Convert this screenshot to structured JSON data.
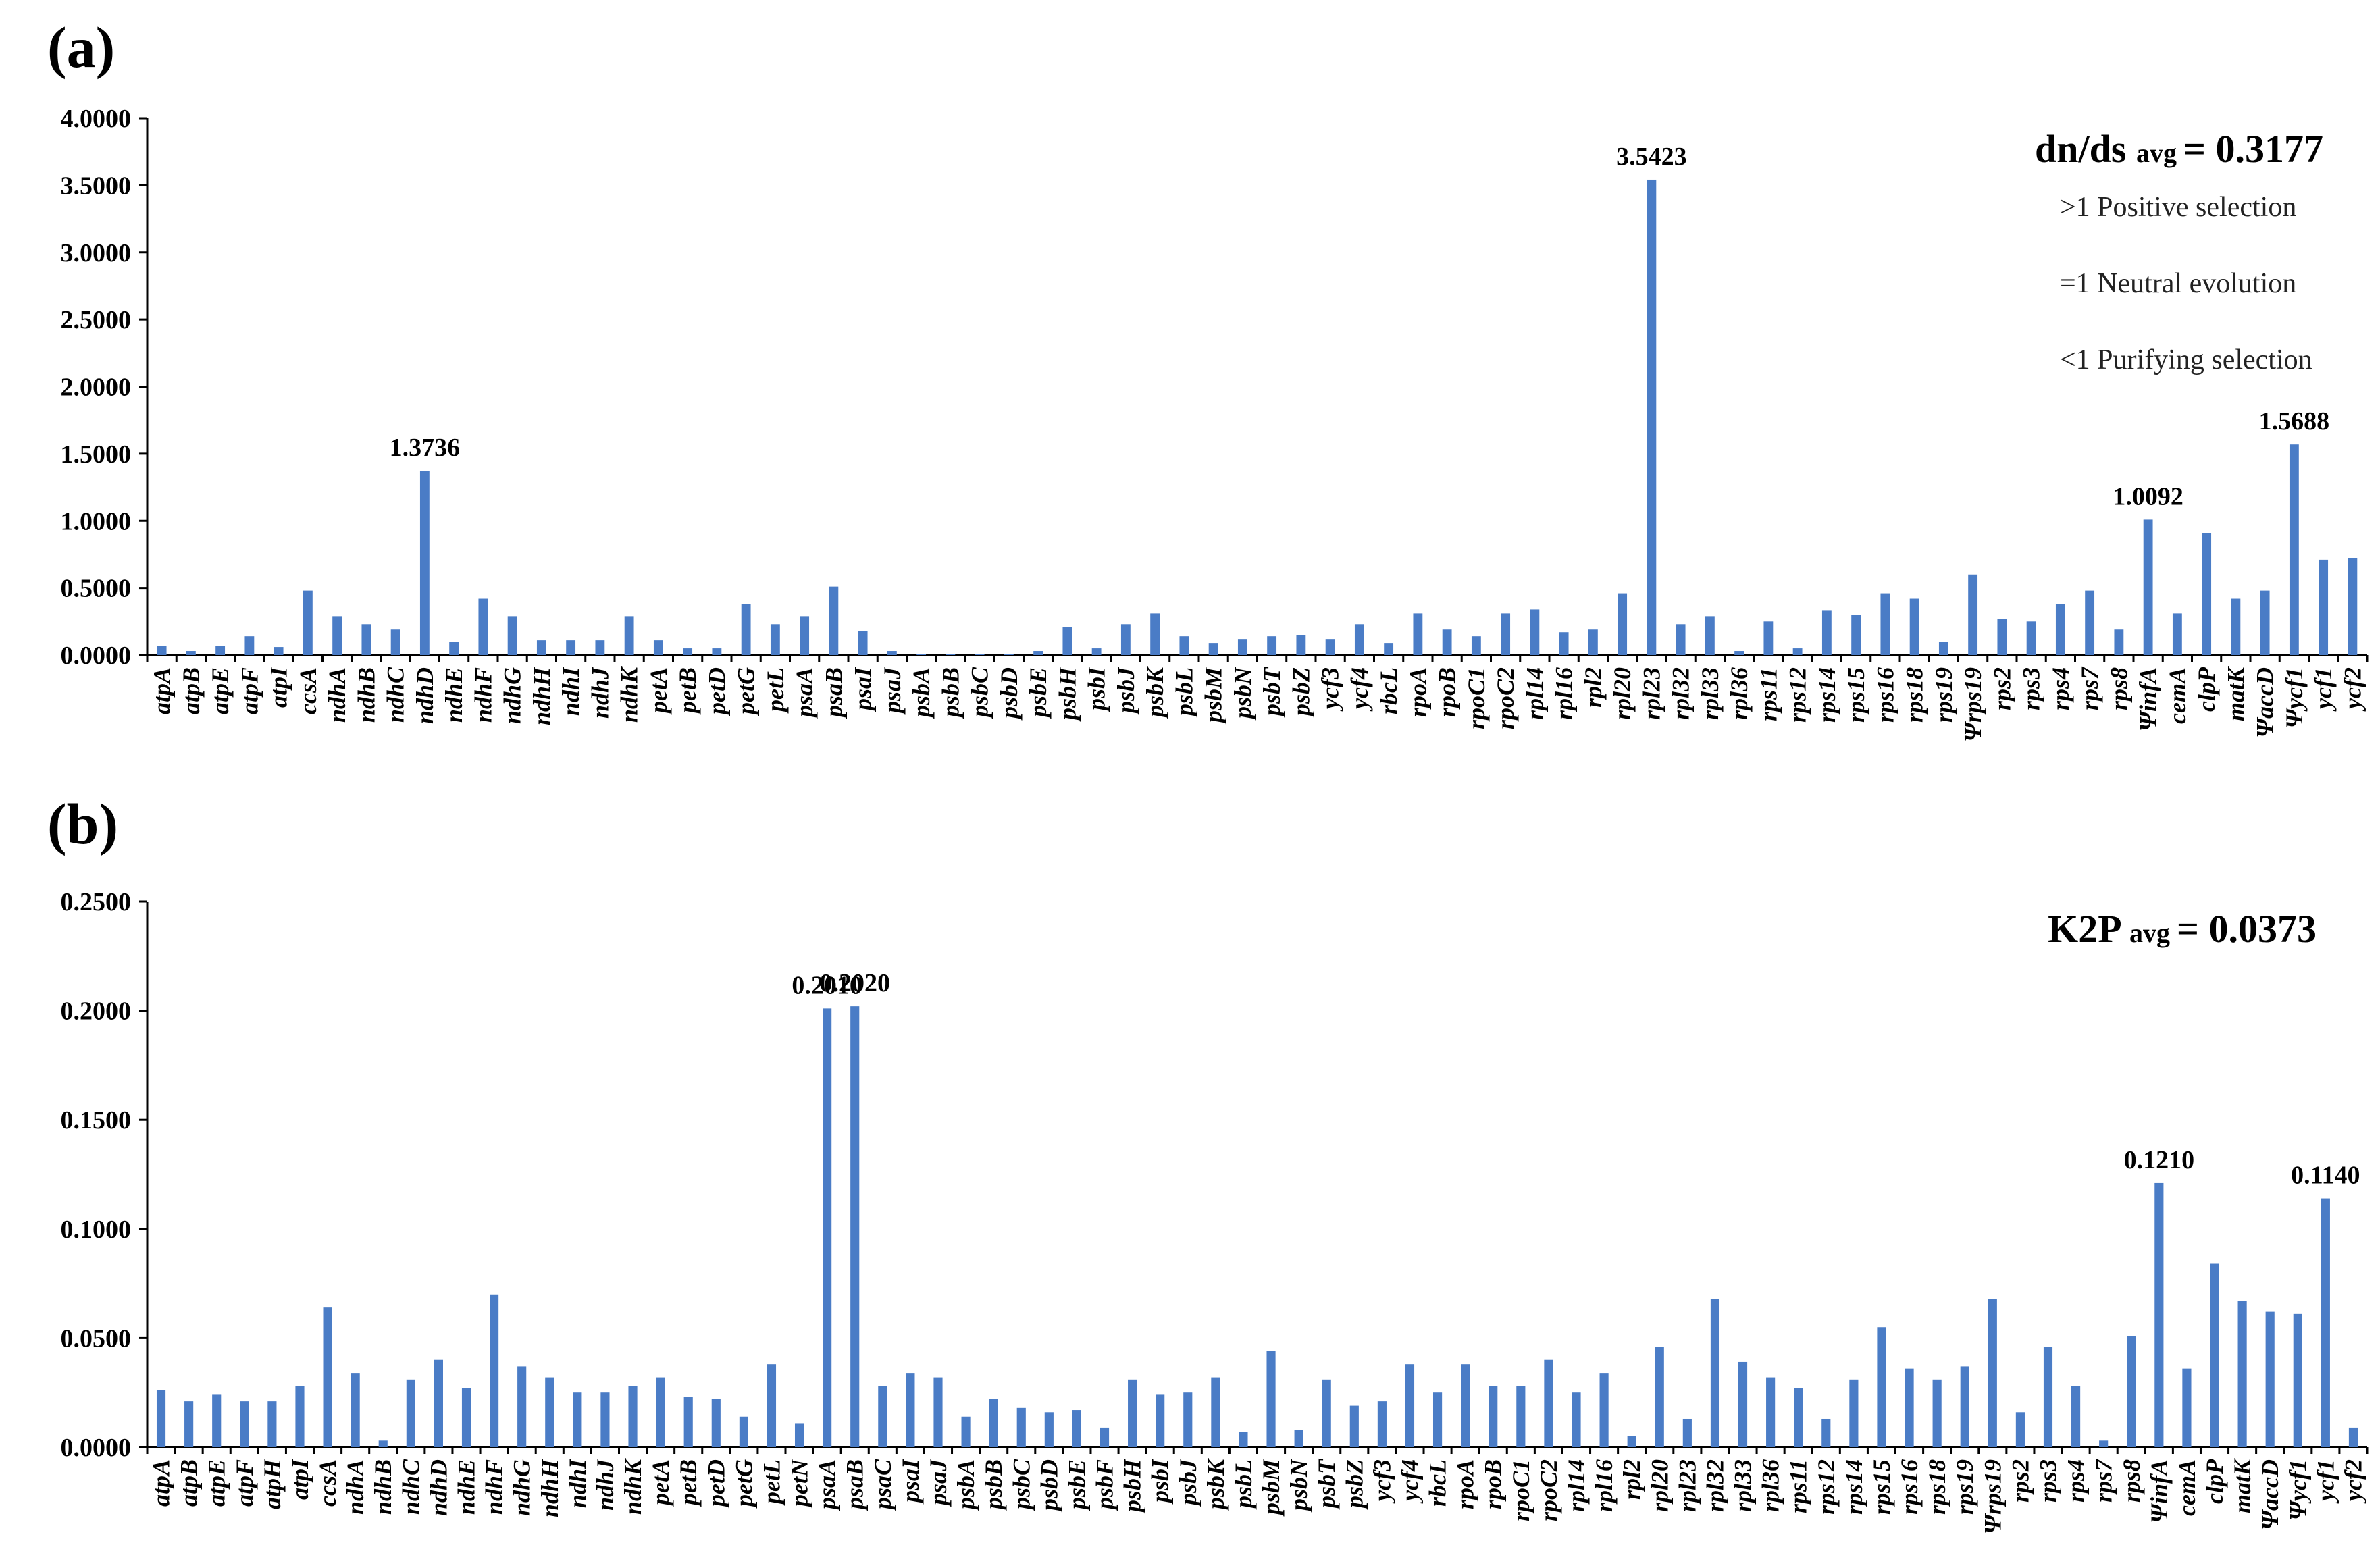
{
  "panels": [
    {
      "label": "(a)",
      "stat": {
        "main": "dn/ds",
        "sub": "avg",
        "value": "= 0.3177"
      },
      "legend": [
        ">1 Positive selection",
        "=1 Neutral evolution",
        "<1 Purifying selection"
      ],
      "chart_data": {
        "type": "bar",
        "ylim": [
          0,
          4
        ],
        "yticks": [
          0,
          0.5,
          1,
          1.5,
          2,
          2.5,
          3,
          3.5,
          4
        ],
        "ytick_labels": [
          "0.0000",
          "0.5000",
          "1.0000",
          "1.5000",
          "2.0000",
          "2.5000",
          "3.0000",
          "3.5000",
          "4.0000"
        ],
        "categories": [
          "atpA",
          "atpB",
          "atpE",
          "atpF",
          "atpI",
          "ccsA",
          "ndhA",
          "ndhB",
          "ndhC",
          "ndhD",
          "ndhE",
          "ndhF",
          "ndhG",
          "ndhH",
          "ndhI",
          "ndhJ",
          "ndhK",
          "petA",
          "petB",
          "petD",
          "petG",
          "petL",
          "psaA",
          "psaB",
          "psaI",
          "psaJ",
          "psbA",
          "psbB",
          "psbC",
          "psbD",
          "psbE",
          "psbH",
          "psbI",
          "psbJ",
          "psbK",
          "psbL",
          "psbM",
          "psbN",
          "psbT",
          "psbZ",
          "ycf3",
          "ycf4",
          "rbcL",
          "rpoA",
          "rpoB",
          "rpoC1",
          "rpoC2",
          "rpl14",
          "rpl16",
          "rpl2",
          "rpl20",
          "rpl23",
          "rpl32",
          "rpl33",
          "rpl36",
          "rps11",
          "rps12",
          "rps14",
          "rps15",
          "rps16",
          "rps18",
          "rps19",
          "Ψrps19",
          "rps2",
          "rps3",
          "rps4",
          "rps7",
          "rps8",
          "ΨinfA",
          "cemA",
          "clpP",
          "matK",
          "ΨaccD",
          "Ψycf1",
          "ycf1",
          "ycf2"
        ],
        "values": [
          0.07,
          0.03,
          0.07,
          0.14,
          0.06,
          0.48,
          0.29,
          0.23,
          0.19,
          1.3736,
          0.1,
          0.42,
          0.29,
          0.11,
          0.11,
          0.11,
          0.29,
          0.11,
          0.05,
          0.05,
          0.38,
          0.23,
          0.29,
          0.51,
          0.18,
          0.03,
          0.01,
          0.01,
          0.01,
          0.01,
          0.03,
          0.21,
          0.05,
          0.23,
          0.31,
          0.14,
          0.09,
          0.12,
          0.14,
          0.15,
          0.12,
          0.23,
          0.09,
          0.31,
          0.19,
          0.14,
          0.31,
          0.34,
          0.17,
          0.19,
          0.46,
          3.5423,
          0.23,
          0.29,
          0.03,
          0.25,
          0.05,
          0.33,
          0.3,
          0.46,
          0.42,
          0.1,
          0.6,
          0.27,
          0.25,
          0.38,
          0.48,
          0.19,
          1.0092,
          0.31,
          0.91,
          0.42,
          0.48,
          1.5688,
          0.71,
          0.72
        ],
        "callouts": [
          {
            "category": "ndhD",
            "label": "1.3736"
          },
          {
            "category": "rpl23",
            "label": "3.5423"
          },
          {
            "category": "ΨinfA",
            "label": "1.0092"
          },
          {
            "category": "Ψycf1",
            "label": "1.5688"
          }
        ]
      }
    },
    {
      "label": "(b)",
      "stat": {
        "main": "K2P",
        "sub": "avg",
        "value": "= 0.0373"
      },
      "legend": [],
      "chart_data": {
        "type": "bar",
        "ylim": [
          0,
          0.25
        ],
        "yticks": [
          0,
          0.05,
          0.1,
          0.15,
          0.2,
          0.25
        ],
        "ytick_labels": [
          "0.0000",
          "0.0500",
          "0.1000",
          "0.1500",
          "0.2000",
          "0.2500"
        ],
        "categories": [
          "atpA",
          "atpB",
          "atpE",
          "atpF",
          "atpH",
          "atpI",
          "ccsA",
          "ndhA",
          "ndhB",
          "ndhC",
          "ndhD",
          "ndhE",
          "ndhF",
          "ndhG",
          "ndhH",
          "ndhI",
          "ndhJ",
          "ndhK",
          "petA",
          "petB",
          "petD",
          "petG",
          "petL",
          "petN",
          "psaA",
          "psaB",
          "psaC",
          "psaI",
          "psaJ",
          "psbA",
          "psbB",
          "psbC",
          "psbD",
          "psbE",
          "psbF",
          "psbH",
          "psbI",
          "psbJ",
          "psbK",
          "psbL",
          "psbM",
          "psbN",
          "psbT",
          "psbZ",
          "ycf3",
          "ycf4",
          "rbcL",
          "rpoA",
          "rpoB",
          "rpoC1",
          "rpoC2",
          "rpl14",
          "rpl16",
          "rpl2",
          "rpl20",
          "rpl23",
          "rpl32",
          "rpl33",
          "rpl36",
          "rps11",
          "rps12",
          "rps14",
          "rps15",
          "rps16",
          "rps18",
          "rps19",
          "Ψrps19",
          "rps2",
          "rps3",
          "rps4",
          "rps7",
          "rps8",
          "ΨinfA",
          "cemA",
          "clpP",
          "matK",
          "ΨaccD",
          "Ψycf1",
          "ycf1",
          "ycf2"
        ],
        "values": [
          0.026,
          0.021,
          0.024,
          0.021,
          0.021,
          0.028,
          0.064,
          0.034,
          0.003,
          0.031,
          0.04,
          0.027,
          0.07,
          0.037,
          0.032,
          0.025,
          0.025,
          0.028,
          0.032,
          0.023,
          0.022,
          0.014,
          0.038,
          0.011,
          0.201,
          0.202,
          0.028,
          0.034,
          0.032,
          0.014,
          0.022,
          0.018,
          0.016,
          0.017,
          0.009,
          0.031,
          0.024,
          0.025,
          0.032,
          0.007,
          0.044,
          0.008,
          0.031,
          0.019,
          0.021,
          0.038,
          0.025,
          0.038,
          0.028,
          0.028,
          0.04,
          0.025,
          0.034,
          0.005,
          0.046,
          0.013,
          0.068,
          0.039,
          0.032,
          0.027,
          0.013,
          0.031,
          0.055,
          0.036,
          0.031,
          0.037,
          0.068,
          0.016,
          0.046,
          0.028,
          0.003,
          0.051,
          0.121,
          0.036,
          0.084,
          0.067,
          0.062,
          0.061,
          0.114,
          0.009
        ],
        "callouts": [
          {
            "category": "psaA",
            "label": "0.2010"
          },
          {
            "category": "psaB",
            "label": "0.2020"
          },
          {
            "category": "ΨinfA",
            "label": "0.1210"
          },
          {
            "category": "ycf1",
            "label": "0.1140"
          }
        ]
      }
    }
  ]
}
